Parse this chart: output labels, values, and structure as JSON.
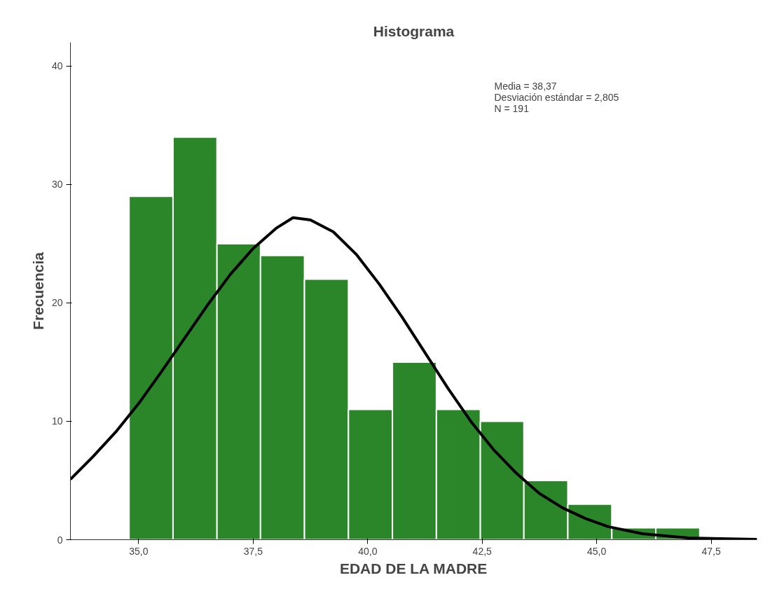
{
  "chart_data": {
    "type": "histogram",
    "title": "Histograma",
    "xlabel": "EDAD DE LA MADRE",
    "ylabel": "Frecuencia",
    "bins": [
      34.79,
      35.75,
      36.71,
      37.66,
      38.62,
      39.58,
      40.54,
      41.5,
      42.46,
      43.41,
      44.37,
      45.33,
      46.29,
      47.25
    ],
    "values": [
      29,
      34,
      25,
      24,
      22,
      11,
      15,
      11,
      10,
      5,
      3,
      1,
      1
    ],
    "color": "#2a8628",
    "series": [
      {
        "type": "line",
        "color": "#000000",
        "x": [
          33.51,
          34.0,
          34.5,
          35.0,
          35.5,
          36.0,
          36.5,
          37.0,
          37.5,
          38.0,
          38.37,
          38.75,
          39.25,
          39.75,
          40.25,
          40.75,
          41.25,
          41.75,
          42.25,
          42.75,
          43.25,
          43.75,
          44.25,
          44.75,
          45.25,
          46.0,
          47.0,
          48.5
        ],
        "values": [
          5.1,
          7.0,
          9.1,
          11.5,
          14.2,
          17.0,
          19.8,
          22.4,
          24.6,
          26.3,
          27.2,
          27.0,
          26.0,
          24.1,
          21.6,
          18.8,
          15.8,
          12.8,
          10.0,
          7.6,
          5.6,
          3.9,
          2.7,
          1.8,
          1.1,
          0.5,
          0.15,
          0.03
        ]
      }
    ],
    "annotations": [
      "Media = 38,37",
      "Desviación estándar = 2,805",
      "N = 191"
    ],
    "xlim": [
      33.51,
      48.5
    ],
    "ylim": [
      0,
      42
    ],
    "xticks": [
      {
        "value": 35,
        "label": "35,0"
      },
      {
        "value": 37.5,
        "label": "37,5"
      },
      {
        "value": 40,
        "label": "40,0"
      },
      {
        "value": 42.5,
        "label": "42,5"
      },
      {
        "value": 45,
        "label": "45,0"
      },
      {
        "value": 47.5,
        "label": "47,5"
      }
    ],
    "yticks": [
      0,
      10,
      20,
      30,
      40
    ],
    "grid": false
  }
}
